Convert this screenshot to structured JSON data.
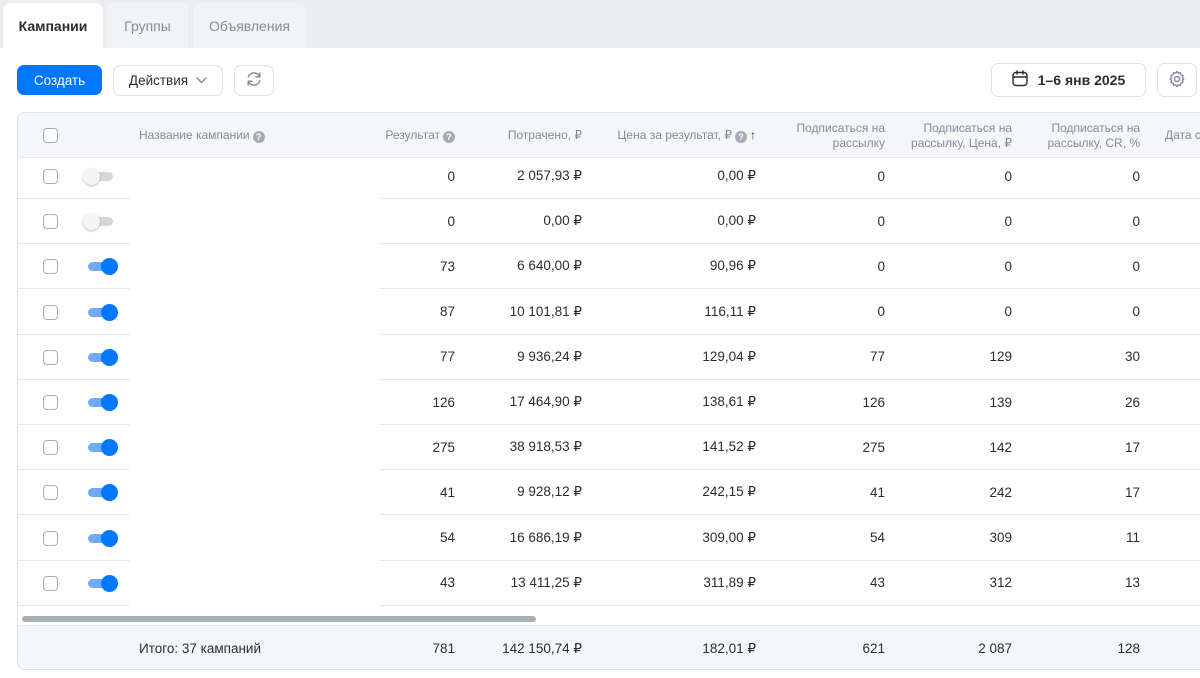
{
  "tabs": [
    {
      "label": "Кампании",
      "active": true
    },
    {
      "label": "Группы",
      "active": false
    },
    {
      "label": "Объявления",
      "active": false
    }
  ],
  "toolbar": {
    "create_label": "Создать",
    "actions_label": "Действия",
    "date_range": "1–6 янв 2025",
    "refresh_icon": "refresh-icon",
    "settings_icon": "gear-icon",
    "calendar_icon": "calendar-icon"
  },
  "colors": {
    "accent": "#0077ff",
    "toggle_track_on": "#6eaaf5",
    "muted_text": "#818c99"
  },
  "table": {
    "headers": {
      "name": "Название кампании",
      "result": "Результат",
      "spent": "Потрачено, ₽",
      "price_line": "Цена за результат, ₽",
      "sub_line1": "Подписаться на",
      "sub_line2": "рассылку",
      "subprice_line1": "Подписаться на",
      "subprice_line2": "рассылку, Цена, ₽",
      "subcr_line1": "Подписаться на",
      "subcr_line2": "рассылку, CR, %",
      "date": "Дата с"
    },
    "rows": [
      {
        "active": false,
        "result": "0",
        "spent": "2 057,93 ₽",
        "price": "0,00 ₽",
        "sub": "0",
        "subprice": "0",
        "cr": "0"
      },
      {
        "active": false,
        "result": "0",
        "spent": "0,00 ₽",
        "price": "0,00 ₽",
        "sub": "0",
        "subprice": "0",
        "cr": "0"
      },
      {
        "active": true,
        "result": "73",
        "spent": "6 640,00 ₽",
        "price": "90,96 ₽",
        "sub": "0",
        "subprice": "0",
        "cr": "0"
      },
      {
        "active": true,
        "result": "87",
        "spent": "10 101,81 ₽",
        "price": "116,11 ₽",
        "sub": "0",
        "subprice": "0",
        "cr": "0"
      },
      {
        "active": true,
        "result": "77",
        "spent": "9 936,24 ₽",
        "price": "129,04 ₽",
        "sub": "77",
        "subprice": "129",
        "cr": "30"
      },
      {
        "active": true,
        "result": "126",
        "spent": "17 464,90 ₽",
        "price": "138,61 ₽",
        "sub": "126",
        "subprice": "139",
        "cr": "26"
      },
      {
        "active": true,
        "result": "275",
        "spent": "38 918,53 ₽",
        "price": "141,52 ₽",
        "sub": "275",
        "subprice": "142",
        "cr": "17"
      },
      {
        "active": true,
        "result": "41",
        "spent": "9 928,12 ₽",
        "price": "242,15 ₽",
        "sub": "41",
        "subprice": "242",
        "cr": "17"
      },
      {
        "active": true,
        "result": "54",
        "spent": "16 686,19 ₽",
        "price": "309,00 ₽",
        "sub": "54",
        "subprice": "309",
        "cr": "11"
      },
      {
        "active": true,
        "result": "43",
        "spent": "13 411,25 ₽",
        "price": "311,89 ₽",
        "sub": "43",
        "subprice": "312",
        "cr": "13"
      }
    ],
    "footer": {
      "label": "Итого: 37 кампаний",
      "result": "781",
      "spent": "142 150,74 ₽",
      "price": "182,01 ₽",
      "sub": "621",
      "subprice": "2 087",
      "cr": "128"
    }
  }
}
